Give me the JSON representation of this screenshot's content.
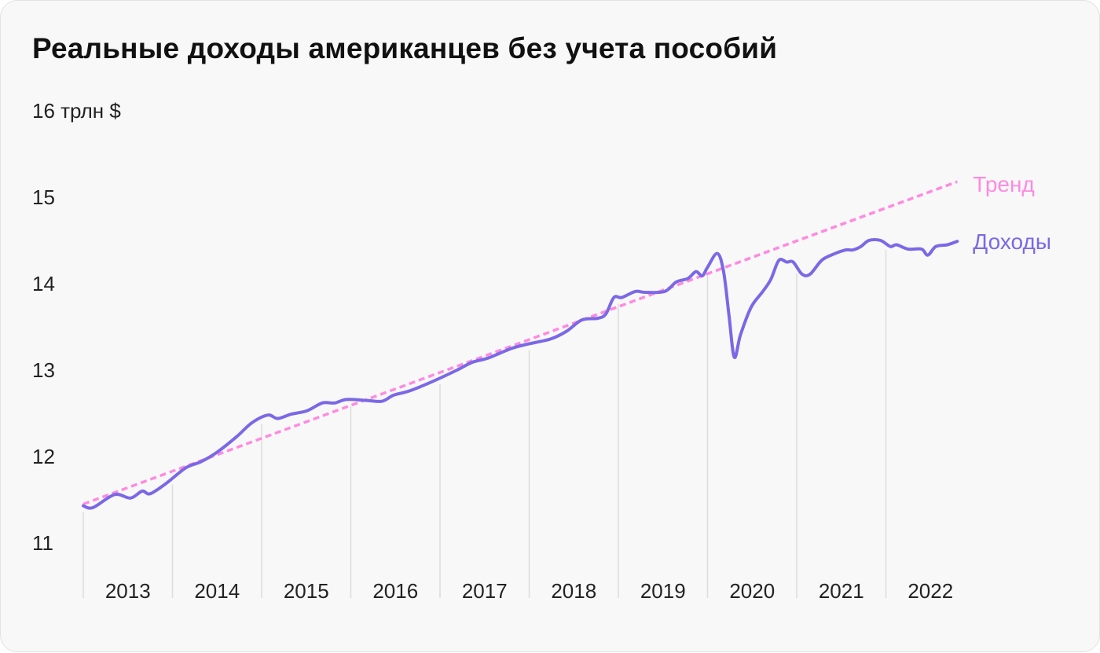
{
  "chart_data": {
    "type": "line",
    "title": "Реальные доходы американцев без учета пособий",
    "ylabel": "16 трлн $",
    "ylim": [
      11,
      16
    ],
    "yticks": [
      "16 трлн $",
      "15",
      "14",
      "13",
      "12",
      "11"
    ],
    "ytick_values": [
      16,
      15,
      14,
      13,
      12,
      11
    ],
    "xlim": [
      2013,
      2023
    ],
    "xticks": [
      "2013",
      "2014",
      "2015",
      "2016",
      "2017",
      "2018",
      "2019",
      "2020",
      "2021",
      "2022"
    ],
    "grid": "vertical",
    "series": [
      {
        "name": "Доходы",
        "color": "#7b68e6",
        "style": "solid",
        "x": [
          2013.0,
          2013.11,
          2013.35,
          2013.53,
          2013.66,
          2013.75,
          2013.93,
          2014.15,
          2014.32,
          2014.5,
          2014.72,
          2014.89,
          2015.07,
          2015.18,
          2015.33,
          2015.51,
          2015.68,
          2015.82,
          2015.95,
          2016.17,
          2016.35,
          2016.48,
          2016.66,
          2016.92,
          2017.19,
          2017.36,
          2017.54,
          2017.8,
          2017.98,
          2018.24,
          2018.42,
          2018.59,
          2018.77,
          2018.86,
          2018.95,
          2019.04,
          2019.19,
          2019.3,
          2019.52,
          2019.65,
          2019.78,
          2019.87,
          2019.94,
          2020.0,
          2020.11,
          2020.18,
          2020.24,
          2020.3,
          2020.37,
          2020.49,
          2020.62,
          2020.71,
          2020.8,
          2020.89,
          2020.96,
          2021.06,
          2021.15,
          2021.28,
          2021.41,
          2021.55,
          2021.63,
          2021.72,
          2021.81,
          2021.94,
          2022.05,
          2022.12,
          2022.25,
          2022.4,
          2022.47,
          2022.56,
          2022.69,
          2022.8
        ],
        "y": [
          11.43,
          11.41,
          11.56,
          11.52,
          11.6,
          11.57,
          11.69,
          11.87,
          11.94,
          12.05,
          12.23,
          12.39,
          12.48,
          12.44,
          12.49,
          12.53,
          12.62,
          12.62,
          12.66,
          12.65,
          12.64,
          12.71,
          12.76,
          12.87,
          13.0,
          13.09,
          13.14,
          13.25,
          13.3,
          13.36,
          13.45,
          13.58,
          13.6,
          13.65,
          13.84,
          13.84,
          13.91,
          13.9,
          13.91,
          14.02,
          14.06,
          14.14,
          14.09,
          14.19,
          14.35,
          14.14,
          13.64,
          13.15,
          13.41,
          13.73,
          13.91,
          14.05,
          14.27,
          14.25,
          14.25,
          14.11,
          14.11,
          14.27,
          14.34,
          14.39,
          14.39,
          14.43,
          14.5,
          14.5,
          14.43,
          14.45,
          14.4,
          14.4,
          14.33,
          14.43,
          14.45,
          14.49
        ]
      },
      {
        "name": "Тренд",
        "color": "#ff8ae0",
        "style": "dashed",
        "x": [
          2013.0,
          2022.8
        ],
        "y": [
          11.45,
          15.18
        ]
      }
    ]
  }
}
